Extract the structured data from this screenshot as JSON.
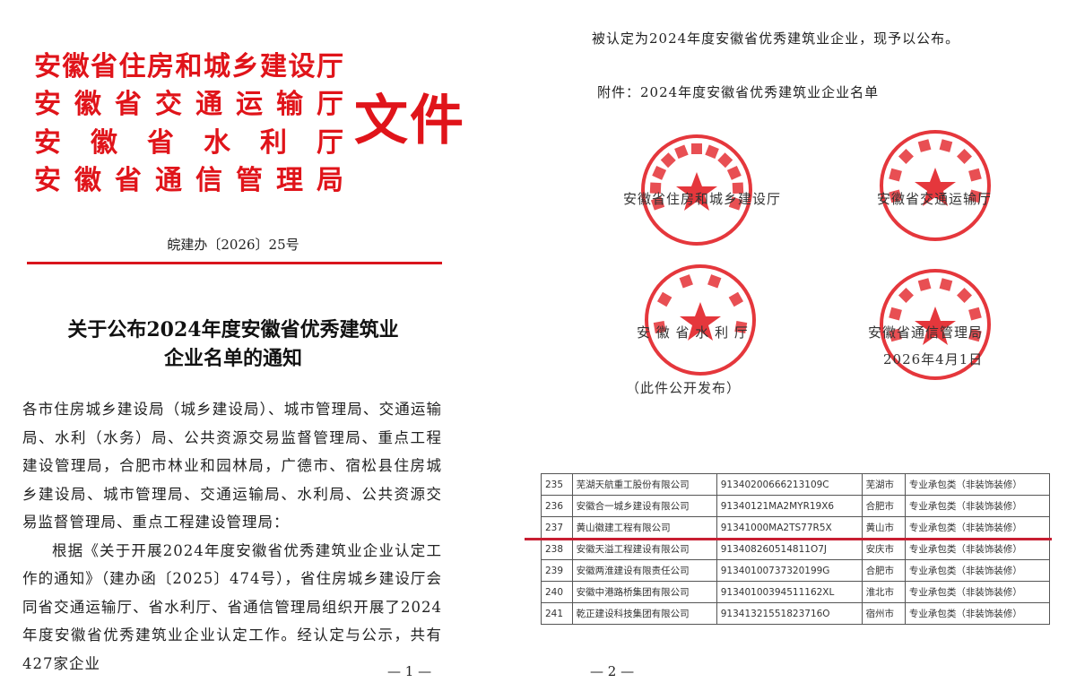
{
  "page1": {
    "issuers": [
      "安徽省住房和城乡建设厅",
      "安徽省交通运输厅",
      "安　徽　省　水　利　厅",
      "安徽省通信管理局"
    ],
    "file_label": "文件",
    "doc_number": "皖建办〔2026〕25号",
    "title": [
      "关于公布2024年度安徽省优秀建筑业",
      "企业名单的通知"
    ],
    "addressee": "各市住房城乡建设局（城乡建设局）、城市管理局、交通运输局、水利（水务）局、公共资源交易监督管理局、重点工程建设管理局，合肥市林业和园林局，广德市、宿松县住房城乡建设局、城市管理局、交通运输局、水利局、公共资源交易监督管理局、重点工程建设管理局：",
    "paragraph": "根据《关于开展2024年度安徽省优秀建筑业企业认定工作的通知》（建办函〔2025〕474号），省住房城乡建设厅会同省交通运输厅、省水利厅、省通信管理局组织开展了2024年度安徽省优秀建筑业企业认定工作。经认定与公示，共有427家企业",
    "page_number": "— 1 —"
  },
  "page2": {
    "continuation": "被认定为2024年度安徽省优秀建筑业企业，现予以公布。",
    "attachment": "附件：2024年度安徽省优秀建筑业企业名单",
    "seals": [
      {
        "label": "安徽省住房和城乡建设厅",
        "ring": "安徽省住房和城乡建设厅"
      },
      {
        "label": "安徽省交通运输厅",
        "ring": "安徽省交通运输厅"
      },
      {
        "label": "安 徽 省 水 利 厅",
        "ring": "安徽省水利厅"
      },
      {
        "label": "安徽省通信管理局",
        "ring": "安徽省通信管理局"
      }
    ],
    "date": "2026年4月1日",
    "public_note": "（此件公开发布）",
    "seal_color": "#e0141a",
    "table": [
      [
        "235",
        "芜湖天航重工股份有限公司",
        "91340200666213109C",
        "芜湖市",
        "专业承包类（非装饰装修）"
      ],
      [
        "236",
        "安徽合一城乡建设有限公司",
        "91340121MA2MYR19X6",
        "合肥市",
        "专业承包类（非装饰装修）"
      ],
      [
        "237",
        "黄山徽建工程有限公司",
        "91341000MA2TS77R5X",
        "黄山市",
        "专业承包类（非装饰装修）"
      ],
      [
        "238",
        "安徽天溢工程建设有限公司",
        "913408260514811O7J",
        "安庆市",
        "专业承包类（非装饰装修）"
      ],
      [
        "239",
        "安徽两淮建设有限责任公司",
        "91340100737320199G",
        "合肥市",
        "专业承包类（非装饰装修）"
      ],
      [
        "240",
        "安徽中港路桥集团有限公司",
        "91340100394511162XL",
        "淮北市",
        "专业承包类（非装饰装修）"
      ],
      [
        "241",
        "乾正建设科技集团有限公司",
        "91341321551823716O",
        "宿州市",
        "专业承包类（非装饰装修）"
      ]
    ],
    "highlight_color": "#c81e32",
    "page_number": "— 2 —"
  }
}
